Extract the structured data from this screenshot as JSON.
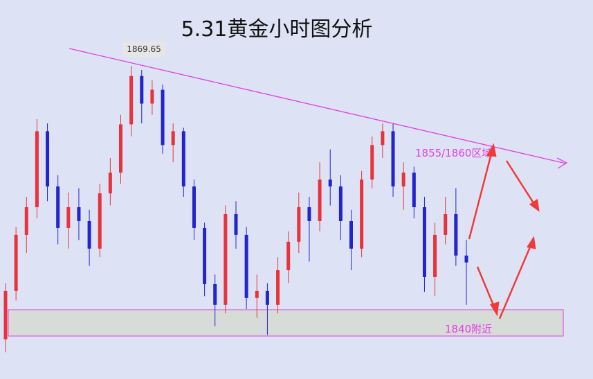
{
  "chart_data": {
    "type": "candlestick",
    "title": "5.31黄金小时图分析",
    "peak_label": "1869.65",
    "resistance_label": "1855/1860区域",
    "support_label": "1840附近",
    "ylim": [
      1833.4,
      1877.3
    ],
    "up_color": "#e8323c",
    "down_color": "#2424cc",
    "open": [
      1838.0,
      1843.6,
      1850.1,
      1853.3,
      1862.1,
      1855.7,
      1850.9,
      1853.3,
      1851.7,
      1848.5,
      1854.9,
      1857.3,
      1862.9,
      1868.5,
      1865.3,
      1866.9,
      1860.5,
      1862.1,
      1855.7,
      1850.9,
      1844.4,
      1842.0,
      1852.5,
      1850.1,
      1842.8,
      1843.6,
      1842.0,
      1846.0,
      1849.3,
      1853.3,
      1851.7,
      1856.5,
      1855.7,
      1851.7,
      1848.5,
      1856.5,
      1860.5,
      1862.1,
      1855.7,
      1857.3,
      1853.3,
      1845.2,
      1850.1,
      1852.5,
      1847.7
    ],
    "high": [
      1844.5,
      1851.0,
      1854.5,
      1863.5,
      1863.0,
      1857.0,
      1855.0,
      1855.5,
      1853.0,
      1856.0,
      1859.0,
      1864.0,
      1869.65,
      1869.2,
      1868.0,
      1867.5,
      1863.0,
      1862.5,
      1856.5,
      1851.5,
      1845.5,
      1853.5,
      1854.0,
      1851.0,
      1845.5,
      1844.5,
      1847.5,
      1850.5,
      1855.0,
      1854.5,
      1858.5,
      1860.0,
      1857.0,
      1853.0,
      1857.5,
      1861.5,
      1863.0,
      1863.0,
      1858.5,
      1858.0,
      1854.5,
      1851.5,
      1854.5,
      1855.5,
      1849.5
    ],
    "low": [
      1836.5,
      1842.5,
      1848.0,
      1852.0,
      1854.0,
      1849.0,
      1848.5,
      1849.5,
      1846.5,
      1847.5,
      1853.5,
      1856.0,
      1861.5,
      1863.0,
      1864.0,
      1859.5,
      1858.5,
      1854.5,
      1849.5,
      1843.0,
      1839.5,
      1841.0,
      1848.5,
      1841.5,
      1840.5,
      1838.5,
      1841.0,
      1844.5,
      1848.0,
      1847.0,
      1850.5,
      1853.5,
      1849.5,
      1846.0,
      1847.5,
      1855.5,
      1859.0,
      1854.5,
      1853.0,
      1852.0,
      1843.5,
      1843.0,
      1849.0,
      1846.5,
      1842.0
    ],
    "close": [
      1843.6,
      1850.1,
      1853.3,
      1862.1,
      1855.7,
      1850.9,
      1853.3,
      1851.7,
      1848.5,
      1854.9,
      1857.3,
      1862.9,
      1868.5,
      1865.3,
      1866.9,
      1860.5,
      1862.1,
      1855.7,
      1850.9,
      1844.4,
      1842.0,
      1852.5,
      1850.1,
      1842.8,
      1843.6,
      1842.0,
      1846.0,
      1849.3,
      1853.3,
      1851.7,
      1856.5,
      1855.7,
      1851.7,
      1848.5,
      1856.5,
      1860.5,
      1862.1,
      1855.7,
      1857.3,
      1853.3,
      1845.2,
      1850.1,
      1852.5,
      1847.7,
      1846.9
    ]
  }
}
